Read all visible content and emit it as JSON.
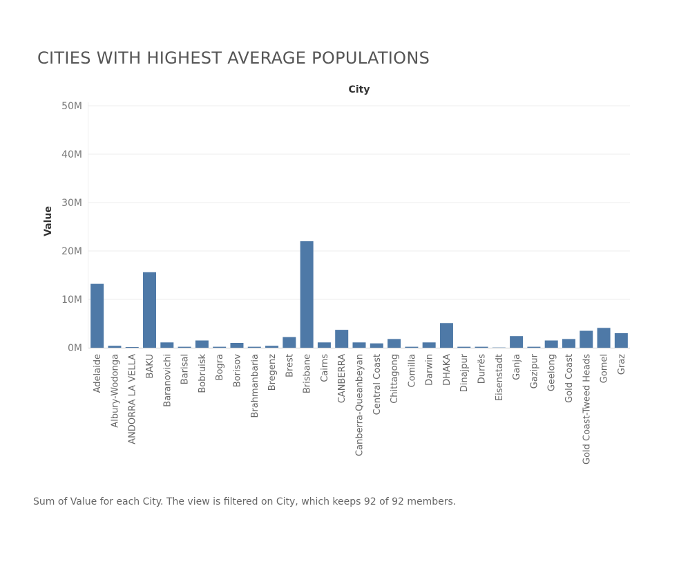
{
  "title": "CITIES WITH HIGHEST AVERAGE POPULATIONS",
  "caption": "Sum of Value for each City. The view is filtered on City, which keeps 92 of 92 members.",
  "colors": {
    "bar": "#4e79a7",
    "grid": "#eeeeee",
    "axis": "#cccccc"
  },
  "chart_data": {
    "type": "bar",
    "title": "CITIES WITH HIGHEST AVERAGE POPULATIONS",
    "xlabel": "City",
    "ylabel": "Value",
    "ylim": [
      0,
      52000000
    ],
    "yticks": [
      0,
      10000000,
      20000000,
      30000000,
      40000000,
      50000000
    ],
    "ytick_labels": [
      "0M",
      "10M",
      "20M",
      "30M",
      "40M",
      "50M"
    ],
    "grid": true,
    "categories": [
      "Adelaide",
      "Albury-Wodonga",
      "ANDORRA LA VELLA",
      "BAKU",
      "Baranovichi",
      "Barisal",
      "Bobruisk",
      "Bogra",
      "Borisov",
      "Brahmanbaria",
      "Bregenz",
      "Brest",
      "Brisbane",
      "Cairns",
      "CANBERRA",
      "Canberra-Queanbeyan",
      "Central Coast",
      "Chittagong",
      "Comilla",
      "Darwin",
      "DHAKA",
      "Dinajpur",
      "Durrës",
      "Eisenstadt",
      "Ganja",
      "Gazipur",
      "Geelong",
      "Gold Coast",
      "Gold Coast-Tweed Heads",
      "Gomel",
      "Graz"
    ],
    "values": [
      13200000,
      400000,
      150000,
      15600000,
      1100000,
      200000,
      1500000,
      200000,
      1000000,
      200000,
      400000,
      2200000,
      22000000,
      1100000,
      3700000,
      1100000,
      900000,
      1800000,
      200000,
      1100000,
      5100000,
      200000,
      200000,
      50000,
      2400000,
      200000,
      1500000,
      1800000,
      3500000,
      4100000,
      3000000
    ]
  }
}
